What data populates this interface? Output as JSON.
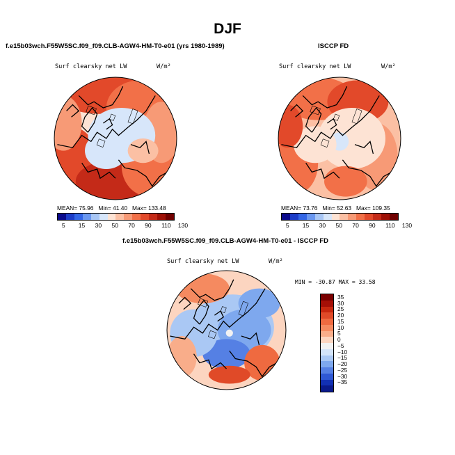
{
  "season": "DJF",
  "panels": {
    "model": {
      "title": "f.e15b03wch.F55W5SC.f09_f09.CLB-AGW4-HM-T0-e01 (yrs 1980-1989)",
      "variable": "Surf clearsky net LW",
      "units": "W/m²",
      "mean_label": "MEAN=",
      "mean": "75.96",
      "min_label": "Min=",
      "min": "41.40",
      "max_label": "Max=",
      "max": "133.48"
    },
    "obs": {
      "title": "ISCCP FD",
      "variable": "Surf clearsky net LW",
      "units": "W/m²",
      "mean_label": "MEAN=",
      "mean": "73.76",
      "min_label": "Min=",
      "min": "52.63",
      "max_label": "Max=",
      "max": "109.35"
    },
    "diff": {
      "title": "f.e15b03wch.F55W5SC.f09_f09.CLB-AGW4-HM-T0-e01 - ISCCP FD",
      "variable": "Surf clearsky net LW",
      "units": "W/m²",
      "minmax_text": "MIN = -30.87  MAX =  33.58"
    }
  },
  "chart_data": [
    {
      "type": "heatmap",
      "projection": "north-polar-stereographic",
      "title": "Surf clearsky net LW",
      "units": "W/m²",
      "mean": 75.96,
      "min": 41.4,
      "max": 133.48,
      "colorbar_levels": [
        5,
        15,
        30,
        50,
        70,
        90,
        110,
        130
      ],
      "colorbar_colors": [
        "#0a0a8c",
        "#1c3cc8",
        "#3366e6",
        "#6a97f0",
        "#a8c6f5",
        "#d7e6fa",
        "#fde3d4",
        "#fbc0a4",
        "#f79a76",
        "#f27048",
        "#e2492a",
        "#c42a18",
        "#9e1006",
        "#700000"
      ]
    },
    {
      "type": "heatmap",
      "projection": "north-polar-stereographic",
      "title": "Surf clearsky net LW",
      "units": "W/m²",
      "mean": 73.76,
      "min": 52.63,
      "max": 109.35,
      "colorbar_levels": [
        5,
        15,
        30,
        50,
        70,
        90,
        110,
        130
      ]
    },
    {
      "type": "heatmap",
      "projection": "north-polar-stereographic",
      "title": "Surf clearsky net LW",
      "units": "W/m²",
      "min": -30.87,
      "max": 33.58,
      "colorbar_levels": [
        35,
        30,
        25,
        20,
        15,
        10,
        5,
        0,
        -5,
        -10,
        -15,
        -20,
        -25,
        -30,
        -35
      ],
      "colorbar_colors": [
        "#7a0000",
        "#a50f06",
        "#c8280f",
        "#e04a28",
        "#ef6a40",
        "#f58a60",
        "#f9ad8a",
        "#fcd5c0",
        "#f2f2f2",
        "#d4e4f9",
        "#aac8f4",
        "#7ea8ee",
        "#5580e4",
        "#2f58d4",
        "#1230b4",
        "#0a1a8c"
      ]
    }
  ],
  "seq_labels": [
    "5",
    "15",
    "30",
    "50",
    "70",
    "90",
    "110",
    "130"
  ],
  "diff_labels": [
    "35",
    "30",
    "25",
    "20",
    "15",
    "10",
    "5",
    "0",
    "−5",
    "−10",
    "−15",
    "−20",
    "−25",
    "−30",
    "−35"
  ]
}
